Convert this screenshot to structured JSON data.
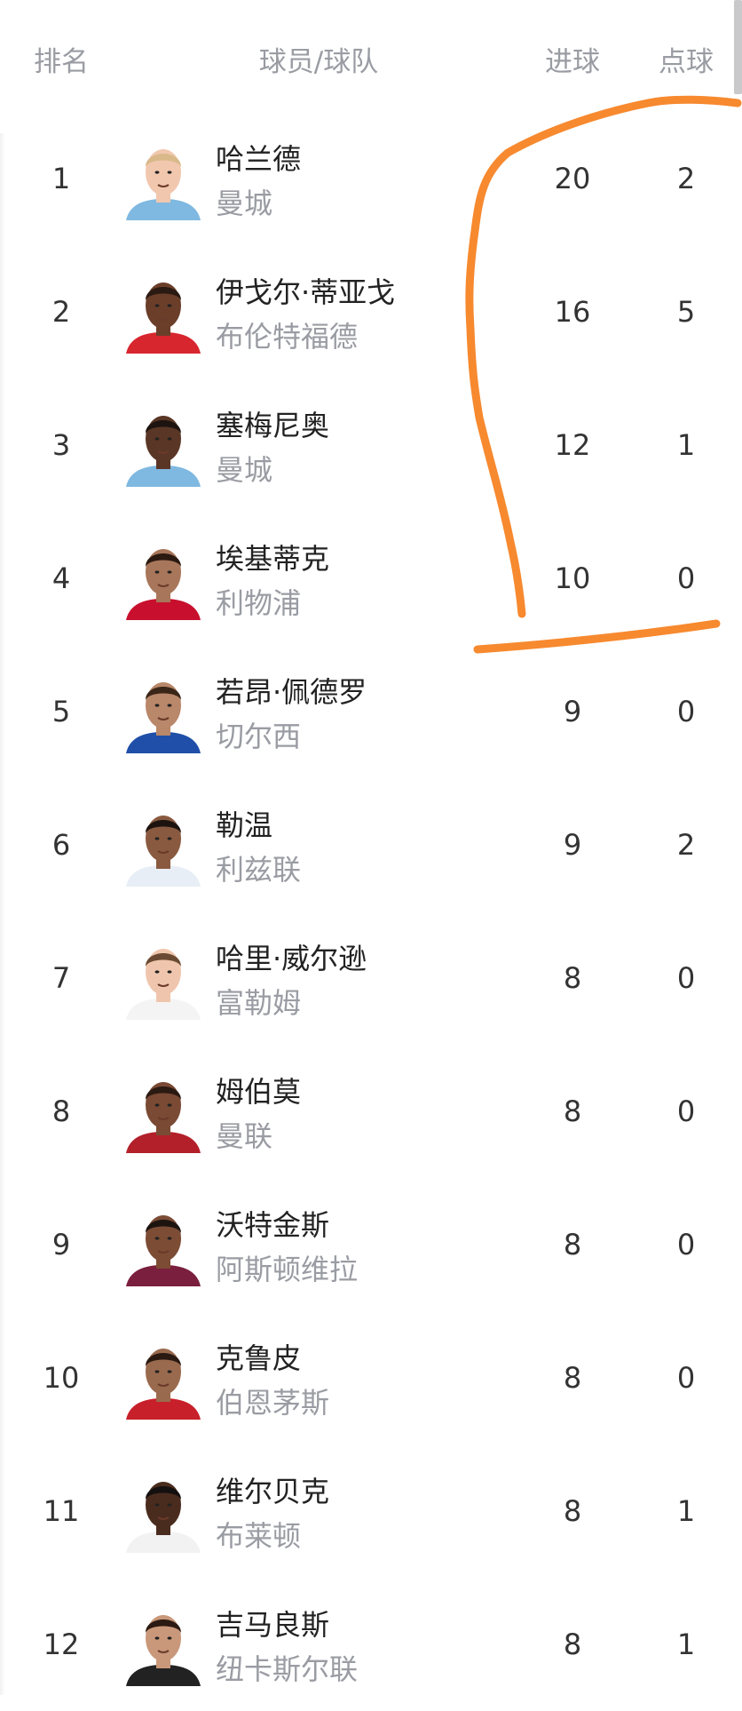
{
  "header": {
    "rank": "排名",
    "player_team": "球员/球队",
    "goals": "进球",
    "penalties": "点球"
  },
  "annotation_color": "#f7892f",
  "players": [
    {
      "rank": "1",
      "name": "哈兰德",
      "team": "曼城",
      "goals": "20",
      "penalties": "2",
      "skin": "#f1c7ae",
      "hair": "#d9b98a",
      "shirt": "#7fb8e0"
    },
    {
      "rank": "2",
      "name": "伊戈尔·蒂亚戈",
      "team": "布伦特福德",
      "goals": "16",
      "penalties": "5",
      "skin": "#6b3e2a",
      "hair": "#2a1a12",
      "shirt": "#d8262e"
    },
    {
      "rank": "3",
      "name": "塞梅尼奥",
      "team": "曼城",
      "goals": "12",
      "penalties": "1",
      "skin": "#5a3626",
      "hair": "#1d1410",
      "shirt": "#7fb8e0"
    },
    {
      "rank": "4",
      "name": "埃基蒂克",
      "team": "利物浦",
      "goals": "10",
      "penalties": "0",
      "skin": "#a8765a",
      "hair": "#2a1a12",
      "shirt": "#c8102e"
    },
    {
      "rank": "5",
      "name": "若昂·佩德罗",
      "team": "切尔西",
      "goals": "9",
      "penalties": "0",
      "skin": "#b9876a",
      "hair": "#3a2618",
      "shirt": "#1f4fa8"
    },
    {
      "rank": "6",
      "name": "勒温",
      "team": "利兹联",
      "goals": "9",
      "penalties": "2",
      "skin": "#8a5a40",
      "hair": "#1d1410",
      "shirt": "#e8eef5"
    },
    {
      "rank": "7",
      "name": "哈里·威尔逊",
      "team": "富勒姆",
      "goals": "8",
      "penalties": "0",
      "skin": "#efc6ad",
      "hair": "#6a4a32",
      "shirt": "#f4f4f4"
    },
    {
      "rank": "8",
      "name": "姆伯莫",
      "team": "曼联",
      "goals": "8",
      "penalties": "0",
      "skin": "#7a4a34",
      "hair": "#2a1a12",
      "shirt": "#b3202a"
    },
    {
      "rank": "9",
      "name": "沃特金斯",
      "team": "阿斯顿维拉",
      "goals": "8",
      "penalties": "0",
      "skin": "#7c4c35",
      "hair": "#1d1410",
      "shirt": "#7a1f3d"
    },
    {
      "rank": "10",
      "name": "克鲁皮",
      "team": "伯恩茅斯",
      "goals": "8",
      "penalties": "0",
      "skin": "#9a6a4e",
      "hair": "#2a1a12",
      "shirt": "#c8202a"
    },
    {
      "rank": "11",
      "name": "维尔贝克",
      "team": "布莱顿",
      "goals": "8",
      "penalties": "1",
      "skin": "#4a2c1e",
      "hair": "#151010",
      "shirt": "#f2f2f2"
    },
    {
      "rank": "12",
      "name": "吉马良斯",
      "team": "纽卡斯尔联",
      "goals": "8",
      "penalties": "1",
      "skin": "#c9987a",
      "hair": "#2a1a12",
      "shirt": "#222222"
    }
  ]
}
